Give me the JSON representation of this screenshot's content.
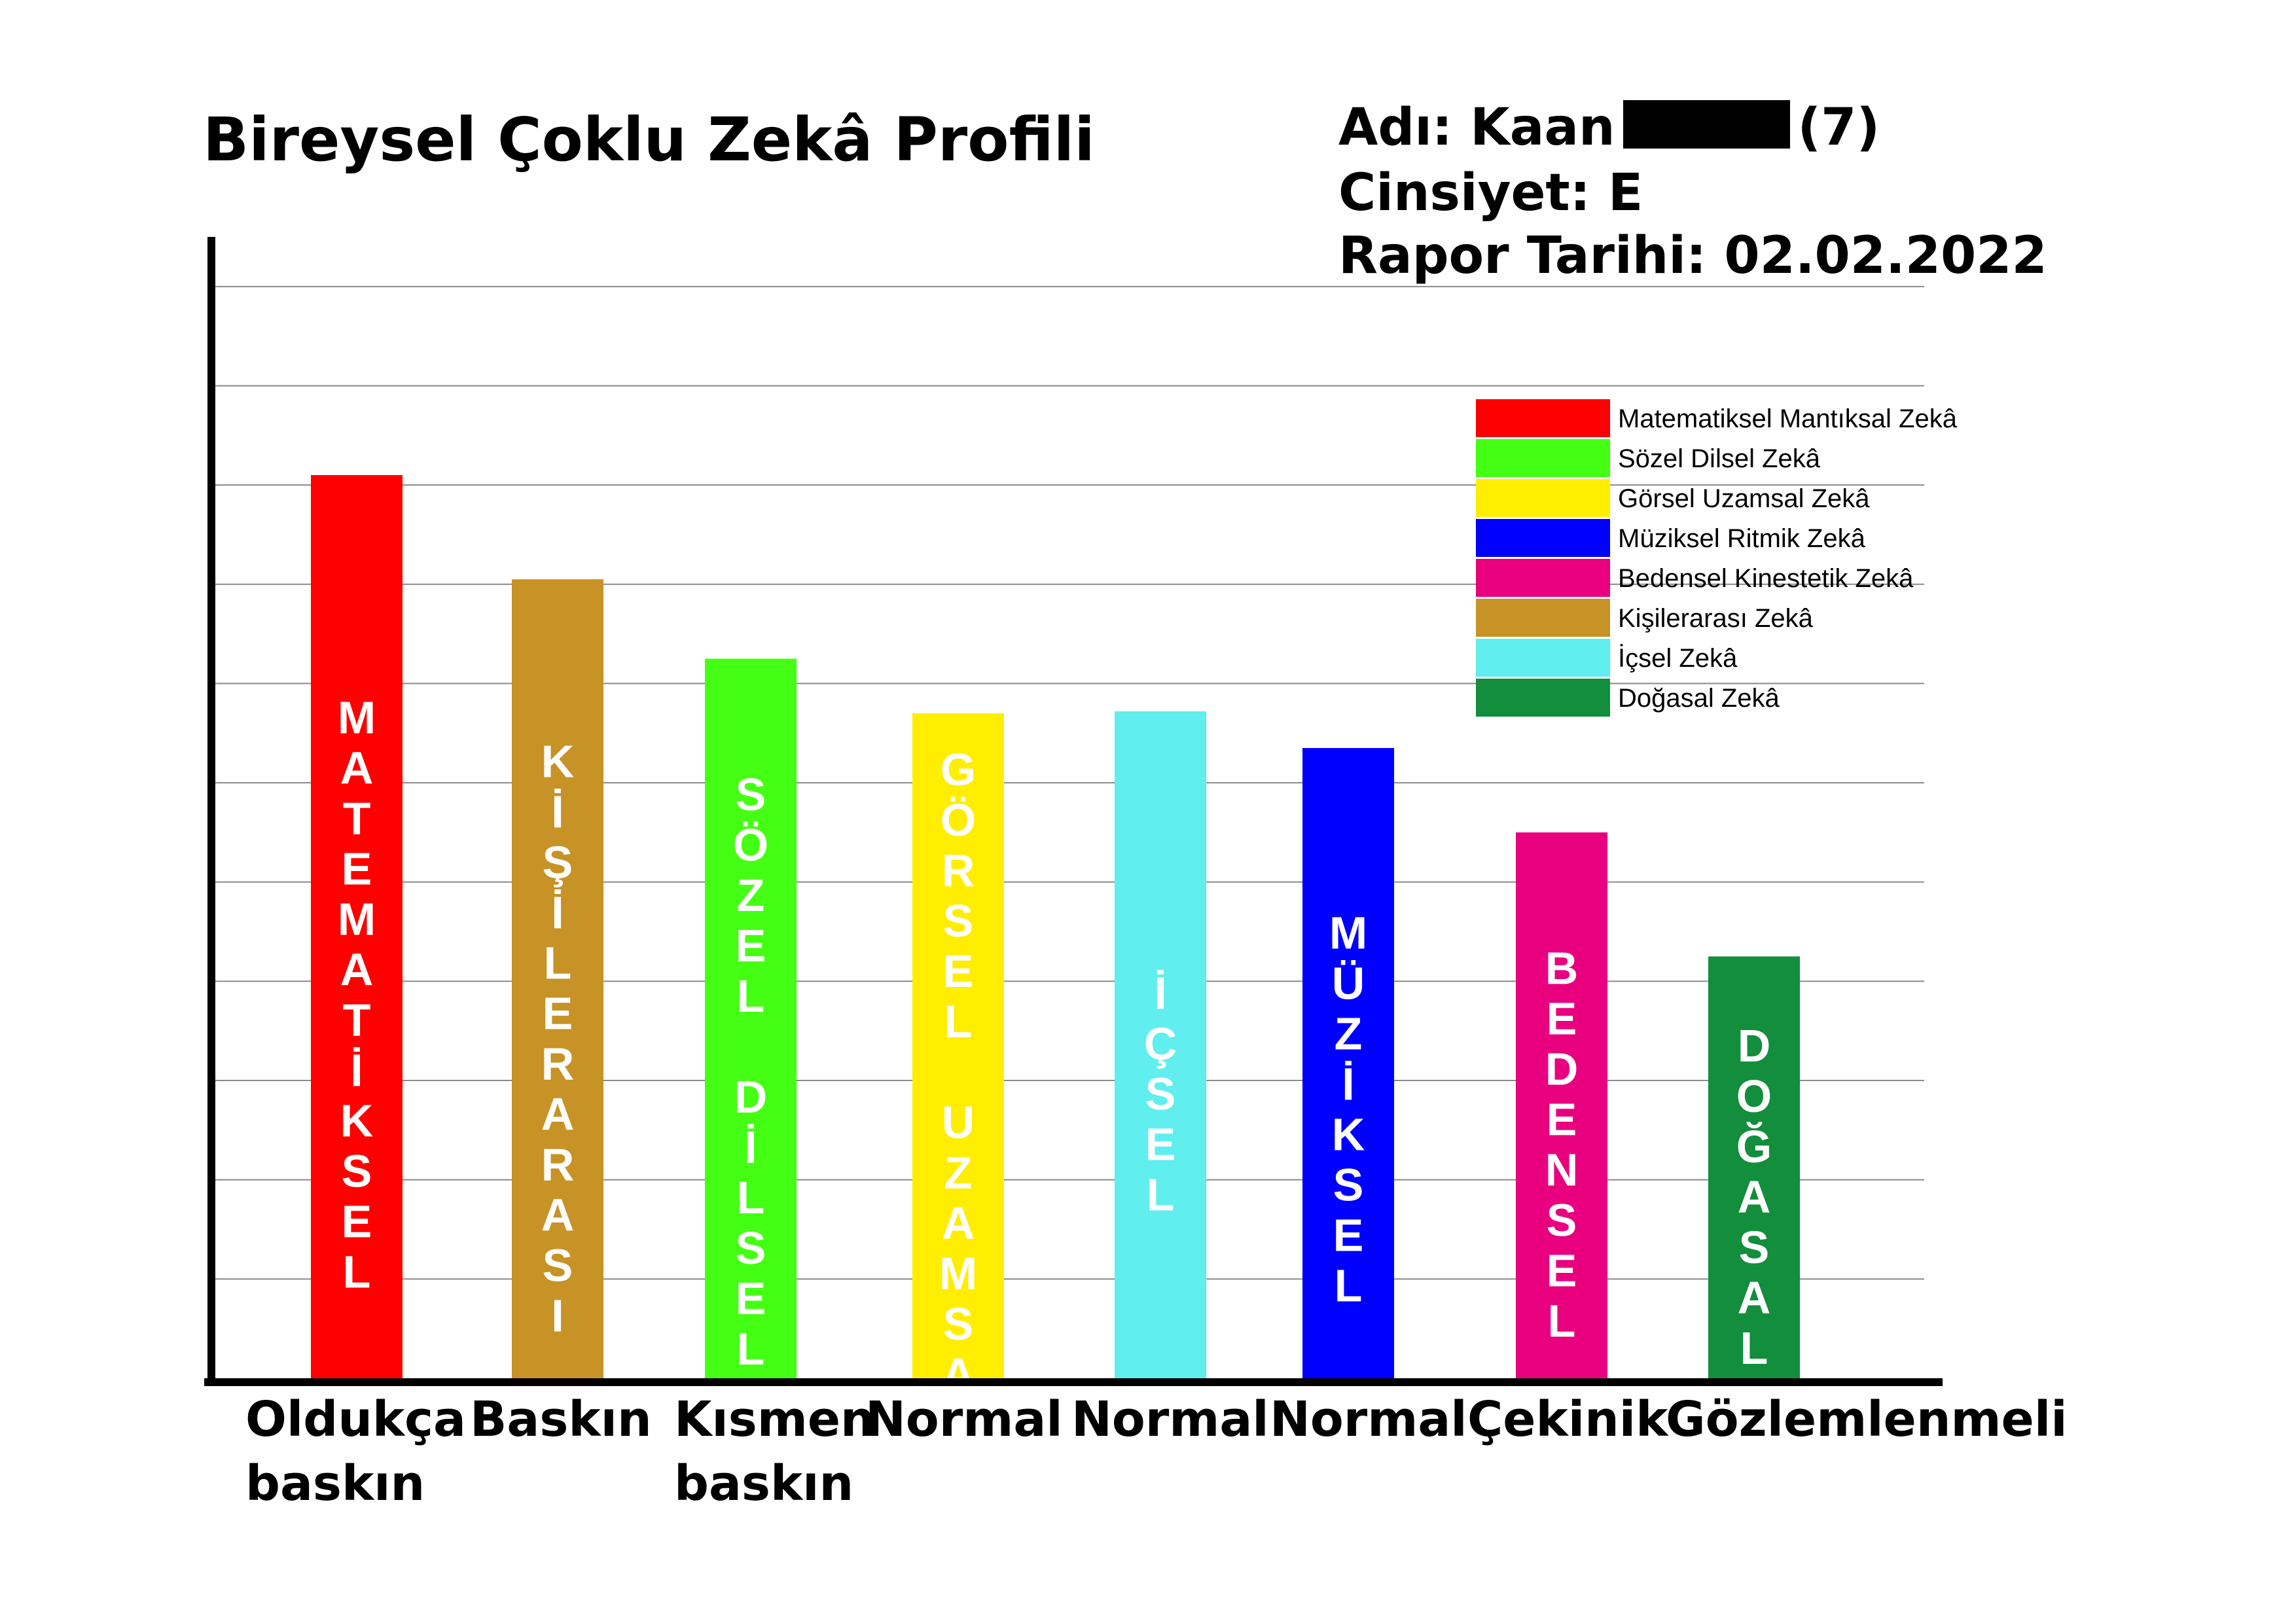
{
  "header": {
    "title": "Bireysel Çoklu Zekâ Profili",
    "name_label": "Adı: Kaan",
    "age": "(7)",
    "gender": "Cinsiyet: E",
    "report_date": "Rapor Tarihi: 02.02.2022"
  },
  "chart_data": {
    "type": "bar",
    "title": "Bireysel Çoklu Zekâ Profili",
    "categories": [
      "Oldukça\nbaskın",
      "Baskın",
      "Kısmen\nbaskın",
      "Normal",
      "Normal",
      "Normal",
      "Çekinik",
      "Gözlemlenmeli"
    ],
    "bar_labels": [
      "MATEMATİKSEL",
      "KİŞİLERARASI",
      "SÖZEL DİLSEL",
      "GÖRSEL UZAMSAL",
      "İÇSEL",
      "MÜZİKSEL",
      "BEDENSEL",
      "DOĞASAL"
    ],
    "values": [
      9.1,
      8.05,
      7.25,
      6.7,
      6.72,
      6.35,
      5.5,
      4.25
    ],
    "ylim": [
      0,
      11.5
    ],
    "grid": true,
    "y_ticks_labeled": false,
    "colors": [
      "#ff0000",
      "#c79226",
      "#44ff13",
      "#ffee00",
      "#61eeee",
      "#0000ff",
      "#e8007f",
      "#128e3c"
    ],
    "legend": {
      "placement": "top-right",
      "entries": [
        {
          "label": "Matematiksel Mantıksal Zekâ",
          "color": "#ff0000"
        },
        {
          "label": "Sözel Dilsel Zekâ",
          "color": "#44ff13"
        },
        {
          "label": "Görsel Uzamsal Zekâ",
          "color": "#ffee00"
        },
        {
          "label": "Müziksel Ritmik Zekâ",
          "color": "#0000ff"
        },
        {
          "label": "Bedensel Kinestetik Zekâ",
          "color": "#e8007f"
        },
        {
          "label": "Kişilerarası Zekâ",
          "color": "#c79226"
        },
        {
          "label": "İçsel Zekâ",
          "color": "#61eeee"
        },
        {
          "label": "Doğasal Zekâ",
          "color": "#128e3c"
        }
      ]
    }
  }
}
